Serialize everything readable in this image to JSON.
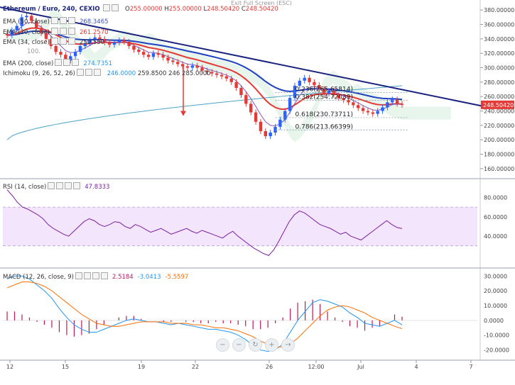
{
  "header": {
    "symbol": "Ethereum / Euro, 240, CEXIO",
    "ohlc": {
      "o_label": "O",
      "o": "255.00000",
      "h_label": "H",
      "h": "255.00000",
      "l_label": "L",
      "l": "248.50420",
      "c_label": "C",
      "c": "248.50420"
    },
    "exit_fullscreen": "Exit Full Screen (ESC)"
  },
  "indicators": [
    {
      "label": "EMA (50, close)",
      "value": "268.3465",
      "color": "#3f51b5"
    },
    {
      "label": "EMA (20, close)",
      "value": "261.2570",
      "color": "#e91e63"
    },
    {
      "label": "EMA (34, close)",
      "value": "250.550",
      "color": "#333333"
    },
    {
      "label": "EMA (200, close)",
      "value": "274.7351",
      "color": "#2196f3"
    },
    {
      "label": "Ichimoku (9, 26, 52, 26)",
      "values": [
        "246.0000",
        "259.8500",
        "246",
        "",
        "285.0000"
      ],
      "color": "#7b1fa2"
    }
  ],
  "ichimoku_extra": "100.",
  "rsi": {
    "label": "RSI (14, close)",
    "value": "47.8333",
    "ticks": [
      "80.0000",
      "60.0000",
      "40.0000"
    ]
  },
  "macd": {
    "label": "MACD (12, 26, close, 9)",
    "hist": "2.5184",
    "macd": "-3.0413",
    "signal": "-5.5597",
    "ticks": [
      "30.0000",
      "20.0000",
      "10.0000",
      "0.0000",
      "-10.0000",
      "-20.0000"
    ]
  },
  "price_axis": [
    "380.00000",
    "360.00000",
    "340.00000",
    "320.00000",
    "300.00000",
    "280.00000",
    "260.00000",
    "240.00000",
    "220.00000",
    "200.00000",
    "180.00000",
    "160.00000"
  ],
  "last_price": "248.50420",
  "fib_labels": [
    "0.236(265.65814)",
    "0.382(254.72039)",
    "0.618(230.73711)",
    "0.786(213.66399)"
  ],
  "time_axis": [
    "12",
    "15",
    "19",
    "22",
    "26",
    "12:00",
    "Jul",
    "4",
    "7"
  ],
  "nav_buttons": [
    "−",
    "−",
    "↻",
    "+",
    "→"
  ],
  "colors": {
    "up": "#2962ff",
    "down": "#e53935",
    "trend": "#1a237e",
    "ema_red": "#e53935",
    "ema_blue": "#1e40c0",
    "sma_cyan": "#26a69a",
    "rsi_line": "#7b1fa2",
    "rsi_band": "#f3e5fb",
    "macd": "#2196f3",
    "signal": "#ff6d00",
    "hist": "#c2185b"
  },
  "chart_data": {
    "type": "candlestick",
    "title": "Ethereum / Euro, 240, CEXIO",
    "ylim": [
      150,
      390
    ],
    "closes": [
      345,
      352,
      358,
      370,
      372,
      365,
      355,
      348,
      340,
      330,
      322,
      318,
      310,
      316,
      322,
      330,
      334,
      338,
      342,
      340,
      335,
      332,
      335,
      338,
      336,
      330,
      325,
      322,
      318,
      315,
      320,
      318,
      314,
      310,
      308,
      305,
      302,
      300,
      303,
      300,
      296,
      294,
      292,
      290,
      288,
      285,
      280,
      272,
      262,
      250,
      238,
      225,
      212,
      205,
      210,
      218,
      228,
      240,
      258,
      275,
      282,
      286,
      280,
      276,
      270,
      264,
      268,
      262,
      258,
      255,
      252,
      248,
      244,
      240,
      238,
      236,
      240,
      245,
      252,
      256,
      250,
      248.5
    ],
    "trendline": [
      [
        0,
        382
      ],
      [
        100,
        248
      ]
    ],
    "fib_levels": [
      265.66,
      254.72,
      230.74,
      213.66
    ],
    "rsi_values": [
      88,
      82,
      75,
      70,
      68,
      65,
      62,
      58,
      52,
      48,
      45,
      42,
      40,
      45,
      50,
      55,
      58,
      56,
      52,
      50,
      52,
      55,
      54,
      50,
      48,
      52,
      50,
      47,
      44,
      46,
      48,
      45,
      42,
      44,
      46,
      48,
      45,
      43,
      46,
      44,
      42,
      40,
      38,
      42,
      45,
      40,
      36,
      32,
      28,
      25,
      22,
      20,
      26,
      35,
      45,
      55,
      62,
      66,
      64,
      60,
      56,
      52,
      50,
      48,
      45,
      42,
      44,
      40,
      38,
      36,
      40,
      44,
      48,
      52,
      56,
      52,
      49,
      47.8
    ],
    "macd_line": [
      28,
      30,
      30,
      28,
      24,
      20,
      15,
      8,
      2,
      -3,
      -6,
      -8,
      -8,
      -6,
      -4,
      -2,
      0,
      1,
      0,
      -1,
      -1,
      -2,
      -3,
      -2,
      -3,
      -4,
      -5,
      -6,
      -6,
      -7,
      -8,
      -10,
      -13,
      -17,
      -20,
      -21,
      -20,
      -16,
      -8,
      0,
      6,
      12,
      14,
      13,
      11,
      9,
      5,
      2,
      -2,
      -3,
      -4,
      -2,
      0,
      -3
    ],
    "signal_line": [
      22,
      24,
      26,
      26,
      25,
      23,
      20,
      16,
      12,
      8,
      4,
      1,
      -2,
      -3,
      -4,
      -4,
      -3,
      -2,
      -1,
      -1,
      -1,
      -1,
      -2,
      -2,
      -2,
      -3,
      -3,
      -4,
      -5,
      -5,
      -6,
      -7,
      -9,
      -11,
      -14,
      -16,
      -18,
      -18,
      -16,
      -12,
      -7,
      -2,
      3,
      7,
      9,
      10,
      9,
      7,
      5,
      2,
      0,
      -2,
      -4,
      -5.6
    ],
    "macd_hist": [
      6,
      6,
      4,
      2,
      -1,
      -3,
      -5,
      -8,
      -10,
      -11,
      -10,
      -9,
      -6,
      -3,
      0,
      2,
      3,
      3,
      1,
      0,
      0,
      -1,
      -1,
      0,
      -1,
      -1,
      -2,
      -2,
      -1,
      -2,
      -2,
      -3,
      -4,
      -6,
      -6,
      -5,
      -2,
      2,
      8,
      12,
      13,
      14,
      11,
      6,
      2,
      -1,
      -4,
      -5,
      -7,
      -5,
      -4,
      0,
      4,
      2.5
    ]
  }
}
